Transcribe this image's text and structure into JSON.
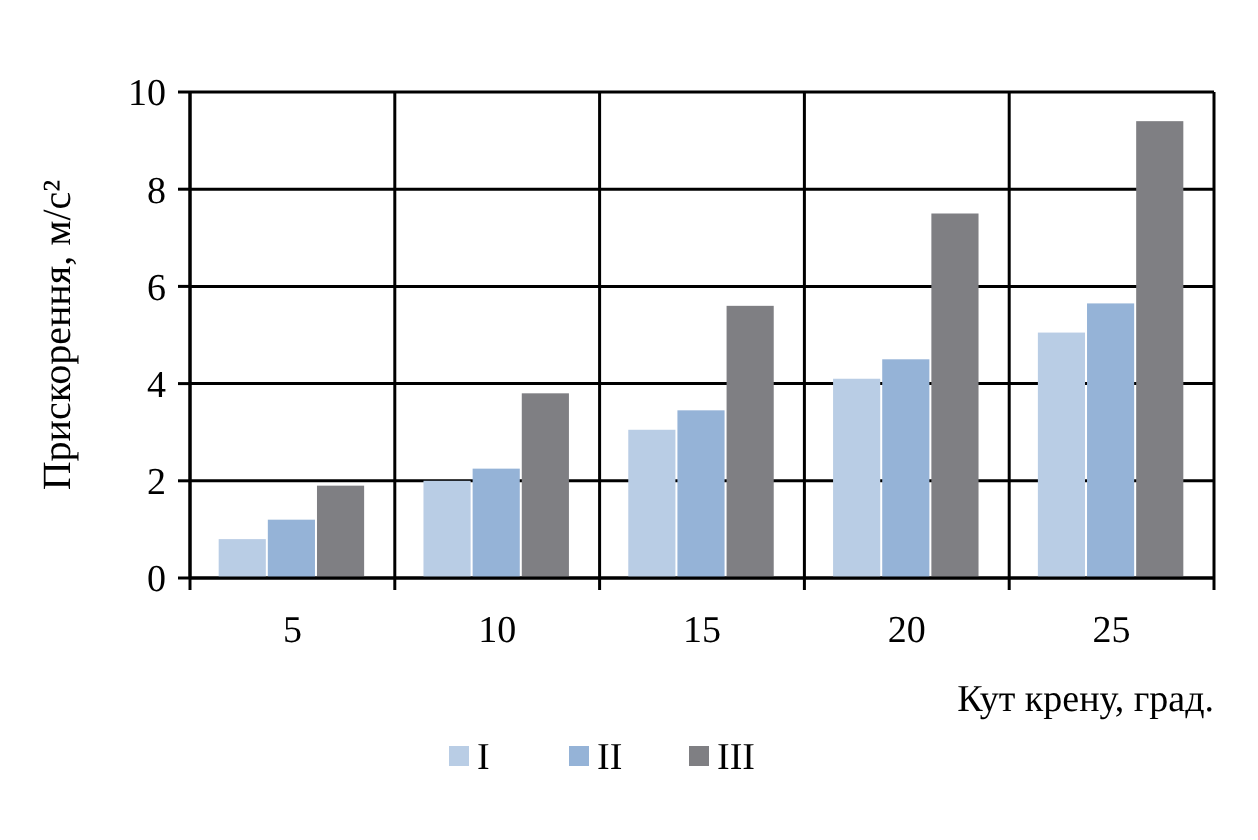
{
  "chart_data": {
    "type": "bar",
    "xlabel": "Кут крену, град.",
    "ylabel": "Прискорення, м/с²",
    "categories": [
      "5",
      "10",
      "15",
      "20",
      "25"
    ],
    "series": [
      {
        "name": "I",
        "color": "#b9cde5",
        "values": [
          0.8,
          2.0,
          3.05,
          4.1,
          5.05
        ]
      },
      {
        "name": "II",
        "color": "#95b3d7",
        "values": [
          1.2,
          2.25,
          3.45,
          4.5,
          5.65
        ]
      },
      {
        "name": "III",
        "color": "#7f7f83",
        "values": [
          1.9,
          3.8,
          5.6,
          7.5,
          9.4
        ]
      }
    ],
    "ylim": [
      0,
      10
    ],
    "yticks": [
      0,
      2,
      4,
      6,
      8,
      10
    ],
    "grid": true,
    "legend": "bottom"
  }
}
